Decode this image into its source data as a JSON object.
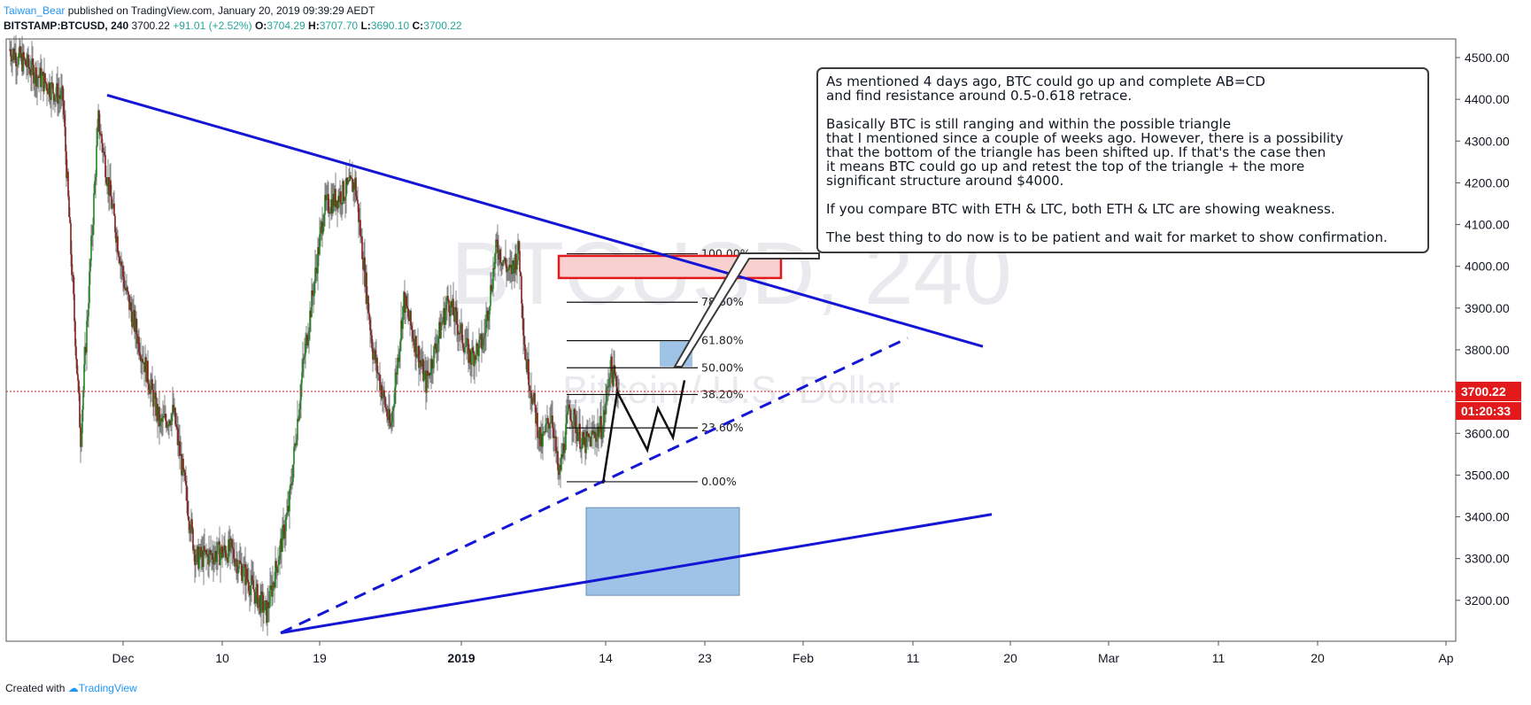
{
  "header": {
    "author": "Taiwan_Bear",
    "published": "published on TradingView.com, January 20, 2019 09:39:29 AEDT",
    "symbol": "BITSTAMP:BTCUSD, 240",
    "last": "3700.22",
    "change": "+91.01 (+2.52%)",
    "o_label": "O:",
    "o": "3704.29",
    "h_label": "H:",
    "h": "3707.70",
    "l_label": "L:",
    "l": "3690.10",
    "c_label": "C:",
    "c": "3700.22"
  },
  "watermark": {
    "title": "BTCUSD, 240",
    "subtitle": "Bitcoin / U.S. Dollar"
  },
  "colors": {
    "up": "#26a69a",
    "green_candle": "#1b8a1b",
    "red_candle": "#8b1a1a",
    "trendline": "#1515d6",
    "price_label": "#e31a1c",
    "box": "#9ec3e6"
  },
  "chart_data": {
    "type": "candlestick",
    "price_axis": {
      "ticks": [
        "4500.00",
        "4400.00",
        "4300.00",
        "4200.00",
        "4100.00",
        "4000.00",
        "3900.00",
        "3800.00",
        "3700.00",
        "3600.00",
        "3500.00",
        "3400.00",
        "3300.00",
        "3200.00"
      ],
      "ylim": [
        3100,
        4580
      ]
    },
    "time_axis": {
      "ticks": [
        "Dec",
        "10",
        "19",
        "2019",
        "14",
        "23",
        "Feb",
        "11",
        "20",
        "Mar",
        "11",
        "20",
        "Ap"
      ]
    },
    "current_price": "3700.22",
    "countdown": "01:20:33",
    "fib_levels": [
      {
        "label": "100.00%",
        "price": 4030
      },
      {
        "label": "78.60%",
        "price": 3914
      },
      {
        "label": "61.80%",
        "price": 3822
      },
      {
        "label": "50.00%",
        "price": 3757
      },
      {
        "label": "38.20%",
        "price": 3693
      },
      {
        "label": "23.60%",
        "price": 3613
      },
      {
        "label": "0.00%",
        "price": 3484
      }
    ],
    "candle_path": [
      [
        4520,
        0
      ],
      [
        4400,
        60
      ],
      [
        3590,
        80
      ],
      [
        4350,
        100
      ],
      [
        3950,
        130
      ],
      [
        3620,
        170
      ],
      [
        3650,
        185
      ],
      [
        3300,
        210
      ],
      [
        3320,
        250
      ],
      [
        3170,
        290
      ],
      [
        3420,
        315
      ],
      [
        3740,
        330
      ],
      [
        4140,
        355
      ],
      [
        4200,
        390
      ],
      [
        3800,
        410
      ],
      [
        3610,
        430
      ],
      [
        3920,
        445
      ],
      [
        3720,
        470
      ],
      [
        3920,
        495
      ],
      [
        3780,
        520
      ],
      [
        3820,
        535
      ],
      [
        4050,
        550
      ],
      [
        3980,
        565
      ],
      [
        4040,
        575
      ],
      [
        3790,
        582
      ],
      [
        3570,
        600
      ],
      [
        3650,
        612
      ],
      [
        3490,
        620
      ],
      [
        3660,
        632
      ],
      [
        3570,
        648
      ],
      [
        3620,
        670
      ],
      [
        3760,
        678
      ],
      [
        3700,
        688
      ]
    ]
  },
  "note": {
    "paragraphs": [
      "As mentioned 4 days ago, BTC could go up and complete AB=CD\nand find resistance around 0.5-0.618 retrace.",
      "Basically BTC is still ranging and within the possible triangle\nthat I mentioned since a couple of weeks ago. However, there is a possibility\nthat the bottom of the triangle has been shifted up. If that's the case then\nit means BTC could go up and retest the top of the triangle + the more\nsignificant structure around $4000.",
      "If you compare BTC with ETH & LTC, both ETH & LTC are showing weakness.",
      "The best thing to do now is to be patient and wait for market to show confirmation."
    ]
  },
  "footer": {
    "created": "Created with",
    "brand": "TradingView"
  }
}
